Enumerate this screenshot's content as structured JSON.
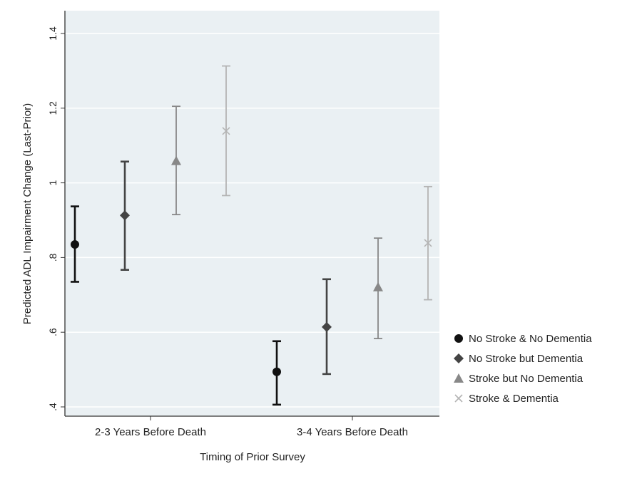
{
  "chart_data": {
    "type": "scatter",
    "subtype": "point-with-error-bars",
    "title": "",
    "xlabel": "Timing of Prior Survey",
    "ylabel": "Predicted ADL Impairment Change (Last-Prior)",
    "ylim": [
      0.4,
      1.4
    ],
    "yticks": [
      0.4,
      0.6,
      0.8,
      1.0,
      1.2,
      1.4
    ],
    "ytick_labels": [
      ".4",
      ".6",
      ".8",
      "1",
      "1.2",
      "1.4"
    ],
    "categories": [
      "2-3 Years Before Death",
      "3-4 Years Before Death"
    ],
    "grid": true,
    "legend_position": "right",
    "background": "#eaf0f3",
    "series": [
      {
        "name": "No Stroke & No Dementia",
        "marker": "circle",
        "color": "#111111",
        "values": [
          0.835,
          0.494
        ],
        "lower": [
          0.735,
          0.406
        ],
        "upper": [
          0.937,
          0.576
        ]
      },
      {
        "name": "No Stroke but Dementia",
        "marker": "diamond",
        "color": "#444444",
        "values": [
          0.913,
          0.614
        ],
        "lower": [
          0.767,
          0.488
        ],
        "upper": [
          1.057,
          0.742
        ]
      },
      {
        "name": "Stroke but No Dementia",
        "marker": "triangle",
        "color": "#888888",
        "values": [
          1.059,
          0.721
        ],
        "lower": [
          0.915,
          0.583
        ],
        "upper": [
          1.205,
          0.852
        ]
      },
      {
        "name": "Stroke & Dementia",
        "marker": "x",
        "color": "#b4b4b4",
        "values": [
          1.139,
          0.839
        ],
        "lower": [
          0.966,
          0.687
        ],
        "upper": [
          1.313,
          0.99
        ]
      }
    ]
  }
}
